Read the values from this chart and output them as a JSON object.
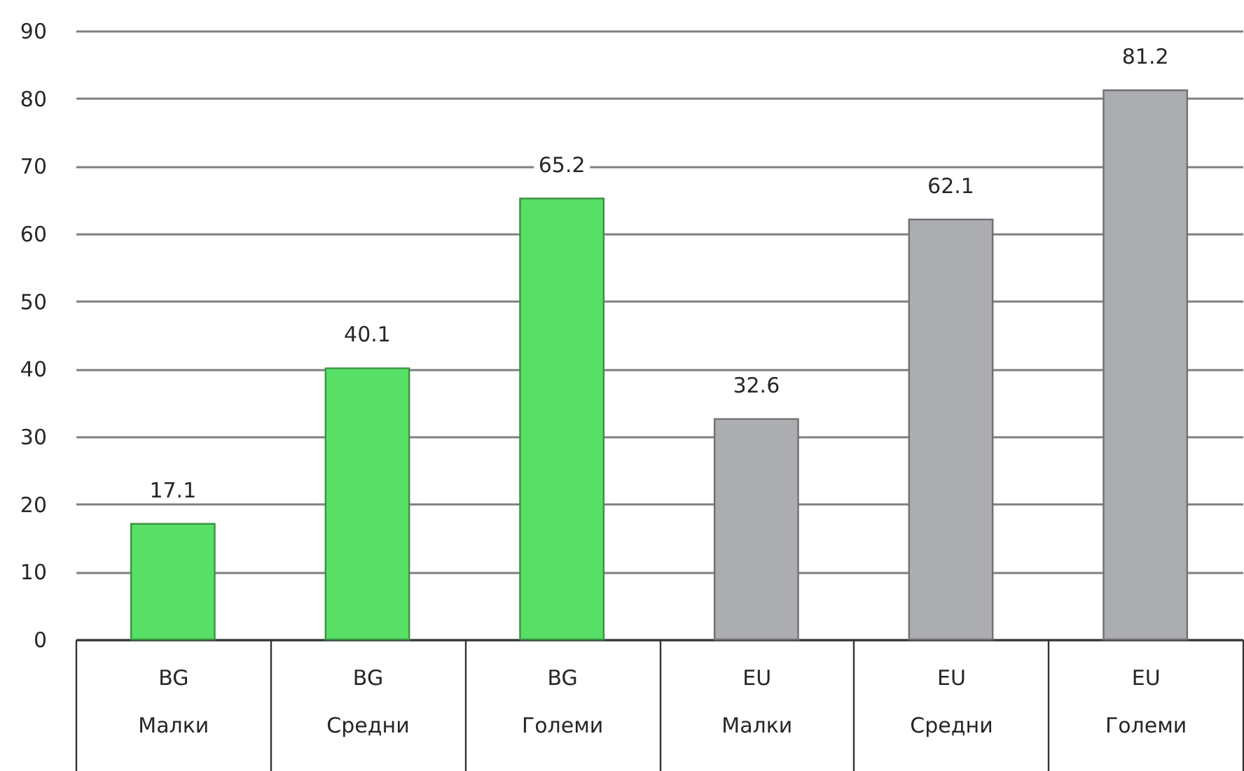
{
  "chart_data": {
    "type": "bar",
    "categories": [
      "BG\nМалки",
      "BG\nСредни",
      "BG\nГолеми",
      "EU\nМалки",
      "EU\nСредни",
      "EU\nГолеми"
    ],
    "values": [
      17.1,
      40.1,
      65.2,
      32.6,
      62.1,
      81.2
    ],
    "colors": [
      "#58e066",
      "#58e066",
      "#58e066",
      "#acadb0",
      "#acadb0",
      "#acadb0"
    ],
    "ylim": [
      0,
      90
    ],
    "yticks": [
      0,
      10,
      20,
      30,
      40,
      50,
      60,
      70,
      80,
      90
    ],
    "grid": "y",
    "data_labels": true
  }
}
